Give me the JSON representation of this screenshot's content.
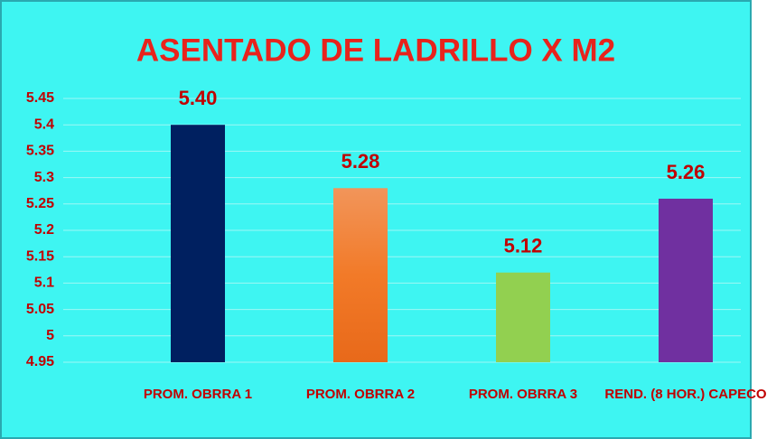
{
  "chart_data": {
    "type": "bar",
    "title": "ASENTADO DE LADRILLO X M2",
    "categories": [
      "PROM. OBRRA 1",
      "PROM. OBRRA 2",
      "PROM. OBRRA 3",
      "REND. (8 HOR.) CAPECO"
    ],
    "values": [
      5.4,
      5.28,
      5.12,
      5.26
    ],
    "value_labels": [
      "5.40",
      "5.28",
      "5.12",
      "5.26"
    ],
    "colors": [
      "#002060",
      "#f07a2a",
      "#92d050",
      "#7030a0"
    ],
    "ylim": [
      4.95,
      5.45
    ],
    "yticks": [
      4.95,
      5,
      5.05,
      5.1,
      5.15,
      5.2,
      5.25,
      5.3,
      5.35,
      5.4,
      5.45
    ],
    "grid": true
  }
}
